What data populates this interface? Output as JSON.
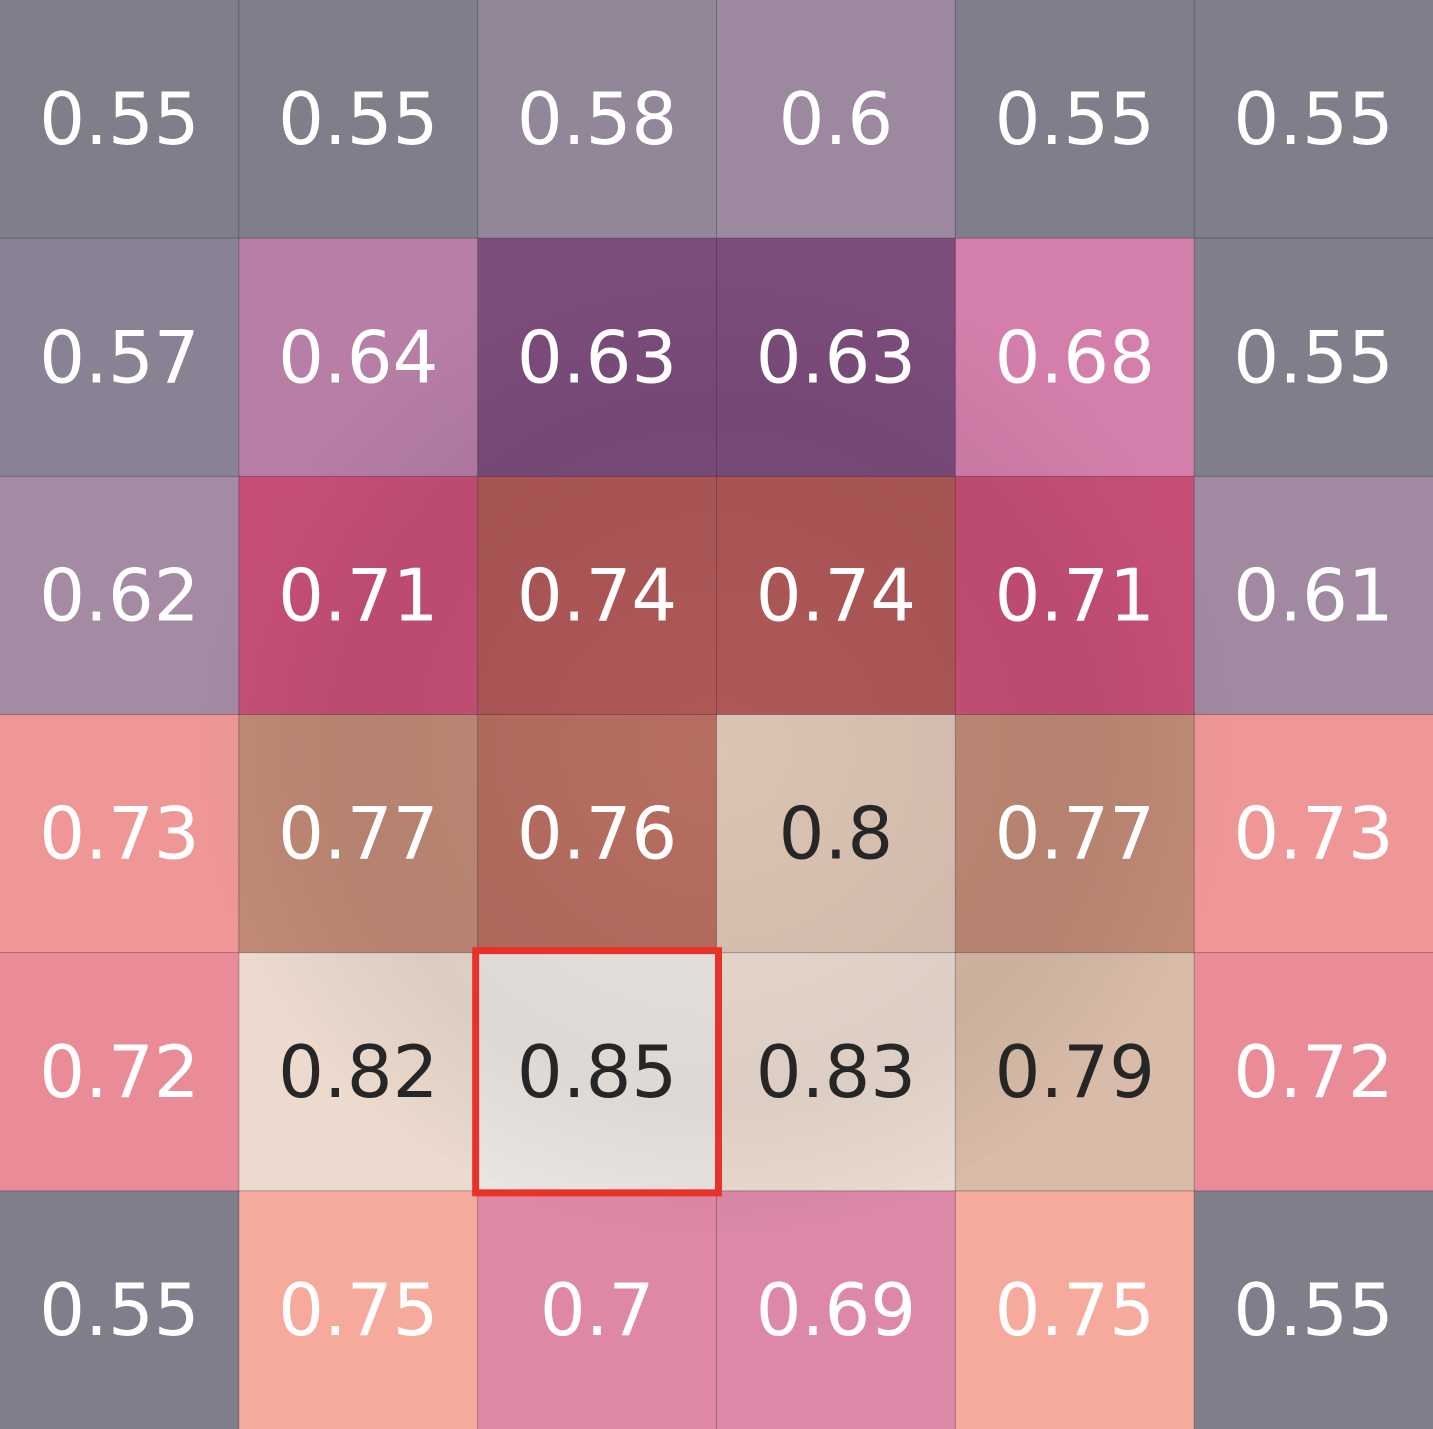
{
  "chart_data": {
    "type": "heatmap",
    "rows": 6,
    "cols": 6,
    "values": [
      [
        0.55,
        0.55,
        0.58,
        0.6,
        0.55,
        0.55
      ],
      [
        0.57,
        0.64,
        0.63,
        0.63,
        0.68,
        0.55
      ],
      [
        0.62,
        0.71,
        0.74,
        0.74,
        0.71,
        0.61
      ],
      [
        0.73,
        0.77,
        0.76,
        0.8,
        0.77,
        0.73
      ],
      [
        0.72,
        0.82,
        0.85,
        0.83,
        0.79,
        0.72
      ],
      [
        0.55,
        0.75,
        0.7,
        0.69,
        0.75,
        0.55
      ]
    ],
    "labels": [
      [
        "0.55",
        "0.55",
        "0.58",
        "0.6",
        "0.55",
        "0.55"
      ],
      [
        "0.57",
        "0.64",
        "0.63",
        "0.63",
        "0.68",
        "0.55"
      ],
      [
        "0.62",
        "0.71",
        "0.74",
        "0.74",
        "0.71",
        "0.61"
      ],
      [
        "0.73",
        "0.77",
        "0.76",
        "0.8",
        "0.77",
        "0.73"
      ],
      [
        "0.72",
        "0.82",
        "0.85",
        "0.83",
        "0.79",
        "0.72"
      ],
      [
        "0.55",
        "0.75",
        "0.7",
        "0.69",
        "0.75",
        "0.55"
      ]
    ],
    "highlight": {
      "row": 4,
      "col": 2,
      "color": "#e63228"
    },
    "colors": {
      "0.55": "#7f7f8c",
      "0.57": "#888294",
      "0.58": "#928699",
      "0.6": "#9c889f",
      "0.61": "#a089a1",
      "0.62": "#a58aa3",
      "0.63": "#7d4d7c",
      "0.64": "#b77ea6",
      "0.68": "#d47fab",
      "0.69": "#dd88a8",
      "0.7": "#df88a6",
      "0.71": "#c74f76",
      "0.72": "#ea8c98",
      "0.73": "#ef9797",
      "0.74": "#b05858",
      "0.75": "#f5aa9c",
      "0.76": "#b76e60",
      "0.77": "#c08a76",
      "0.79": "#d8bba8",
      "0.8": "#dcc4b4",
      "0.82": "#ebdacd",
      "0.83": "#eadbd0",
      "0.85": "#ece6e2"
    },
    "text_colors": {
      "light": "#ffffff",
      "dark": "#262626"
    },
    "dark_text_threshold": 0.785,
    "grid_lines": true
  }
}
